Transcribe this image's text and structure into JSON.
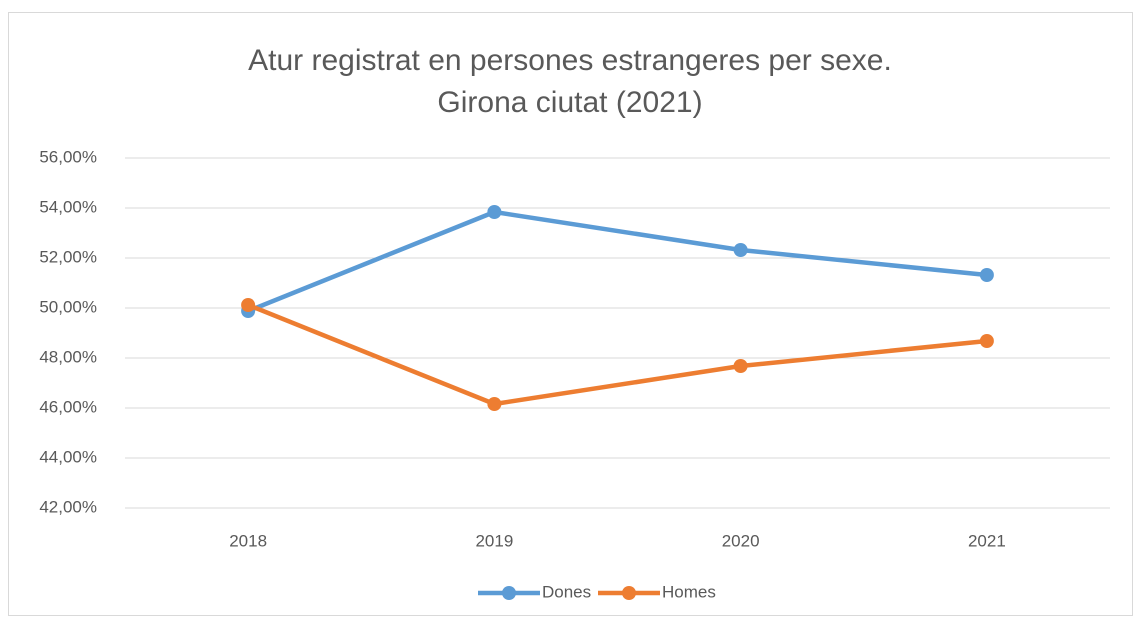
{
  "chart_data": {
    "type": "line",
    "title": "Atur registrat en persones estrangeres per sexe. Girona ciutat (2021)",
    "categories": [
      "2018",
      "2019",
      "2020",
      "2021"
    ],
    "series": [
      {
        "name": "Dones",
        "color": "#5b9bd5",
        "values": [
          49.88,
          53.84,
          52.32,
          51.32
        ]
      },
      {
        "name": "Homes",
        "color": "#ed7d31",
        "values": [
          50.12,
          46.16,
          47.68,
          48.68
        ]
      }
    ],
    "ylim": [
      42,
      56
    ],
    "yticks": [
      {
        "value": 42,
        "label": "42,00%"
      },
      {
        "value": 44,
        "label": "44,00%"
      },
      {
        "value": 46,
        "label": "46,00%"
      },
      {
        "value": 48,
        "label": "48,00%"
      },
      {
        "value": 50,
        "label": "50,00%"
      },
      {
        "value": 52,
        "label": "52,00%"
      },
      {
        "value": 54,
        "label": "54,00%"
      },
      {
        "value": 56,
        "label": "56,00%"
      }
    ],
    "grid": true,
    "legend": "bottom"
  }
}
